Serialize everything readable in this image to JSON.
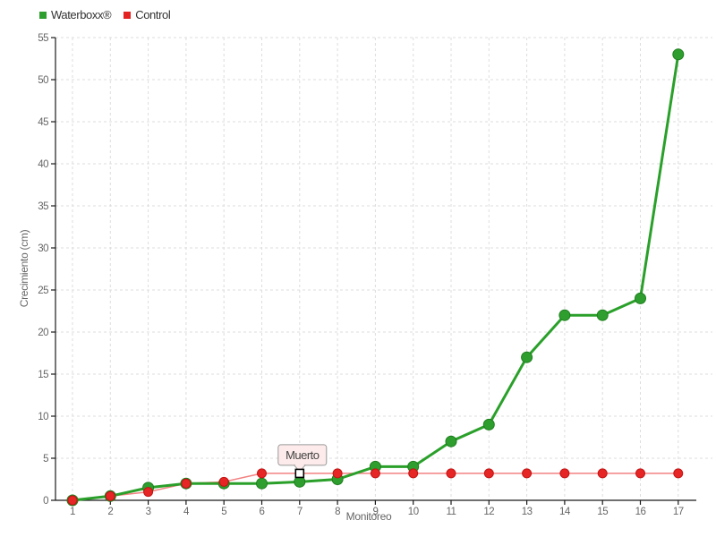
{
  "legend": {
    "items": [
      {
        "label": "Waterboxx®",
        "color": "#2e9e2e"
      },
      {
        "label": "Control",
        "color": "#e32222"
      }
    ]
  },
  "chart_data": {
    "type": "line",
    "title": "",
    "xlabel": "Monitoreo",
    "ylabel": "Crecimiento (cm)",
    "x": [
      1,
      2,
      3,
      4,
      5,
      6,
      7,
      8,
      9,
      10,
      11,
      12,
      13,
      14,
      15,
      16,
      17
    ],
    "series": [
      {
        "name": "Waterboxx®",
        "line_color": "#2aa02a",
        "line_width": 3,
        "marker": "circle",
        "marker_color": "#2e9e2e",
        "marker_stroke": "#1e7e1e",
        "marker_radius": 6,
        "values": [
          0,
          0.5,
          1.5,
          2,
          2,
          2,
          2.2,
          2.5,
          4,
          4,
          7,
          9,
          17,
          22,
          22,
          24,
          53
        ]
      },
      {
        "name": "Control",
        "line_color": "#f38080",
        "line_width": 1.5,
        "marker": "circle",
        "marker_color": "#e62525",
        "marker_stroke": "#c41414",
        "marker_radius": 5,
        "values": [
          0,
          0.5,
          1,
          2,
          2.2,
          3.2,
          3.2,
          3.2,
          3.2,
          3.2,
          3.2,
          3.2,
          3.2,
          3.2,
          3.2,
          3.2,
          3.2
        ],
        "dead_point": {
          "x": 7,
          "marker": "open-square",
          "fill": "#ffffff",
          "stroke": "#000000"
        }
      }
    ],
    "annotation": {
      "text": "Muerto",
      "target_x": 7,
      "target_series": "Control",
      "box_fill": "#fdeaea",
      "box_border": "#999999",
      "text_color": "#444444"
    },
    "xlim": [
      1,
      17
    ],
    "ylim": [
      0,
      55
    ],
    "y_tick_step": 5,
    "grid": true,
    "legend_position": "top-left",
    "colors": {
      "grid": "#dddddd",
      "axis": "#1a1a1a",
      "tick_label": "#666666",
      "background": "#ffffff"
    }
  }
}
